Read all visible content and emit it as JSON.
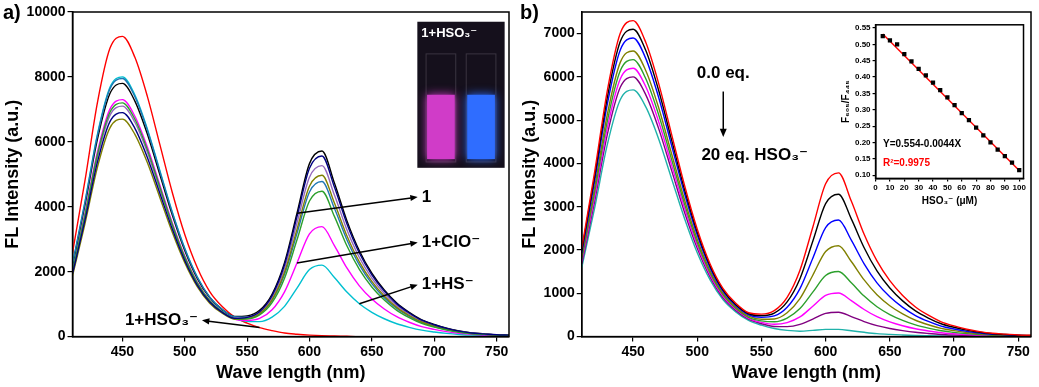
{
  "chart_data": [
    {
      "type": "line",
      "title": "a)",
      "x_label": "Wave length (nm)",
      "y_label": "FL Intensity (a.u.)",
      "xlim": [
        410,
        760
      ],
      "xticks": [
        450,
        500,
        550,
        600,
        650,
        700,
        750
      ],
      "ylim": [
        0,
        10000
      ],
      "yticks": [
        0,
        2000,
        4000,
        6000,
        8000,
        10000
      ],
      "grid": false,
      "annotations": [
        "1+HSO₃⁻"
      ],
      "x": [
        410,
        420,
        430,
        440,
        450,
        460,
        470,
        480,
        490,
        500,
        510,
        520,
        530,
        540,
        550,
        560,
        570,
        580,
        590,
        600,
        610,
        620,
        630,
        640,
        650,
        660,
        670,
        680,
        690,
        700,
        710,
        720,
        730,
        740,
        750,
        760
      ],
      "series": [
        {
          "color": "#000080",
          "values": [
            1932,
            3588,
            5382,
            6624,
            6900,
            6417,
            5520,
            4416,
            3312,
            2346,
            1587,
            1063,
            746,
            561,
            591,
            767,
            1258,
            2211,
            3695,
            5187,
            5565,
            4606,
            3479,
            2576,
            1904,
            1400,
            1008,
            728,
            504,
            364,
            252,
            168,
            112,
            84,
            56,
            45
          ]
        },
        {
          "color": "#2ca02c",
          "values": [
            2016,
            3744,
            5616,
            6912,
            7200,
            6696,
            5760,
            4608,
            3456,
            2448,
            1656,
            1103,
            765,
            558,
            549,
            666,
            1044,
            1796,
            2983,
            4176,
            4477,
            3704,
            2797,
            2070,
            1530,
            1125,
            810,
            585,
            405,
            293,
            203,
            135,
            90,
            68,
            45,
            36
          ]
        },
        {
          "color": "#808000",
          "values": [
            1876,
            3484,
            5226,
            6432,
            6700,
            6231,
            5360,
            4288,
            3216,
            2278,
            1541,
            1030,
            720,
            536,
            552,
            701,
            1134,
            1980,
            3304,
            4634,
            4970,
            4113,
            3107,
            2300,
            1700,
            1250,
            900,
            650,
            450,
            325,
            225,
            150,
            100,
            75,
            50,
            40
          ]
        },
        {
          "color": "#9467bd",
          "values": [
            1988,
            3692,
            5538,
            6816,
            7100,
            6603,
            5680,
            4544,
            3408,
            2414,
            1633,
            1092,
            763,
            568,
            585,
            743,
            1202,
            2099,
            3502,
            4912,
            5268,
            4360,
            3293,
            2438,
            1802,
            1325,
            954,
            689,
            477,
            345,
            239,
            159,
            106,
            80,
            53,
            42
          ]
        },
        {
          "color": "#1f77b4",
          "values": [
            2226,
            4134,
            6201,
            7632,
            7950,
            7394,
            6360,
            5088,
            3816,
            2703,
            1829,
            1217,
            843,
            613,
            598,
            719,
            1119,
            1919,
            3184,
            4456,
            4776,
            3952,
            2984,
            2208,
            1632,
            1200,
            864,
            624,
            432,
            312,
            216,
            144,
            96,
            72,
            48,
            38
          ]
        },
        {
          "name": "1",
          "color": "#000000",
          "values": [
            2184,
            4056,
            6084,
            7488,
            7800,
            7254,
            6240,
            4992,
            3744,
            2652,
            1794,
            1199,
            838,
            622,
            639,
            809,
            1306,
            2279,
            3800,
            5329,
            5716,
            4731,
            3573,
            2645,
            1955,
            1438,
            1035,
            748,
            518,
            374,
            259,
            173,
            115,
            86,
            58,
            46
          ]
        },
        {
          "name": "1+ClO⁻",
          "color": "#ff00ff",
          "values": [
            2044,
            3796,
            5694,
            7008,
            7300,
            6789,
            5840,
            4672,
            3504,
            2482,
            1679,
            1112,
            764,
            543,
            499,
            559,
            826,
            1380,
            2268,
            3165,
            3388,
            2803,
            2115,
            1564,
            1156,
            850,
            612,
            442,
            306,
            221,
            153,
            102,
            68,
            51,
            34,
            27
          ]
        },
        {
          "name": "1+HS⁻",
          "color": "#00c0d0",
          "values": [
            2240,
            4160,
            6240,
            7680,
            8000,
            7440,
            6400,
            5120,
            3840,
            2720,
            1840,
            1211,
            822,
            564,
            470,
            460,
            600,
            932,
            1494,
            2064,
            2202,
            1820,
            1372,
            1012,
            748,
            550,
            396,
            286,
            198,
            143,
            99,
            66,
            44,
            33,
            22,
            18
          ]
        },
        {
          "name": "1+HSO₃⁻",
          "color": "#ff0000",
          "values": [
            2590,
            4810,
            7215,
            8880,
            9250,
            8603,
            7400,
            5920,
            4440,
            3145,
            2128,
            1388,
            925,
            601,
            416,
            278,
            185,
            111,
            74,
            46,
            28,
            19,
            9,
            0,
            0,
            0,
            0,
            0,
            0,
            0,
            0,
            0,
            0,
            0,
            0,
            0
          ]
        }
      ]
    },
    {
      "type": "line",
      "title": "b)",
      "x_label": "Wave length (nm)",
      "y_label": "FL Intensity (a.u.)",
      "xlim": [
        410,
        760
      ],
      "xticks": [
        450,
        500,
        550,
        600,
        650,
        700,
        750
      ],
      "ylim": [
        0,
        7500
      ],
      "yticks": [
        0,
        1000,
        2000,
        3000,
        4000,
        5000,
        6000,
        7000
      ],
      "grid": false,
      "annotations": [
        "0.0 eq.",
        "20 eq. HSO₃⁻"
      ],
      "x": [
        410,
        420,
        430,
        440,
        450,
        460,
        470,
        480,
        490,
        500,
        510,
        520,
        530,
        540,
        550,
        560,
        570,
        580,
        590,
        600,
        610,
        620,
        630,
        640,
        650,
        660,
        670,
        680,
        690,
        700,
        710,
        720,
        730,
        740,
        750,
        760
      ],
      "series": [
        {
          "color": "#ff0000",
          "values": [
            2044,
            3796,
            5694,
            7008,
            7300,
            6789,
            5840,
            4672,
            3504,
            2482,
            1679,
            1114,
            768,
            551,
            519,
            599,
            906,
            1532,
            2528,
            3533,
            3784,
            3131,
            2363,
            1748,
            1292,
            950,
            684,
            494,
            342,
            247,
            171,
            114,
            76,
            57,
            38,
            30
          ]
        },
        {
          "color": "#000000",
          "values": [
            1988,
            3692,
            5538,
            6816,
            7100,
            6603,
            5680,
            4544,
            3408,
            2414,
            1633,
            1082,
            743,
            528,
            485,
            543,
            802,
            1339,
            2202,
            3072,
            3288,
            2720,
            2053,
            1518,
            1122,
            825,
            594,
            429,
            297,
            215,
            149,
            99,
            66,
            50,
            33,
            26
          ]
        },
        {
          "color": "#0000ff",
          "values": [
            1932,
            3588,
            5382,
            6624,
            6900,
            6417,
            5520,
            4416,
            3312,
            2346,
            1587,
            1049,
            717,
            503,
            446,
            477,
            678,
            1109,
            1810,
            2519,
            2694,
            2228,
            1681,
            1242,
            918,
            675,
            486,
            351,
            243,
            176,
            122,
            81,
            54,
            41,
            27,
            22
          ]
        },
        {
          "color": "#808000",
          "values": [
            1848,
            3432,
            5148,
            6336,
            6600,
            6138,
            5280,
            4224,
            3168,
            2244,
            1518,
            1001,
            681,
            471,
            402,
            408,
            552,
            877,
            1418,
            1965,
            2099,
            1735,
            1309,
            966,
            714,
            525,
            378,
            273,
            189,
            137,
            95,
            63,
            42,
            32,
            21,
            17
          ]
        },
        {
          "color": "#2ca02c",
          "values": [
            1792,
            3328,
            4992,
            6144,
            6400,
            5952,
            5120,
            4096,
            3072,
            2176,
            1472,
            968,
            655,
            446,
            363,
            342,
            428,
            647,
            1026,
            1412,
            1504,
            1243,
            936,
            690,
            510,
            375,
            270,
            195,
            135,
            98,
            68,
            45,
            30,
            23,
            15,
            12
          ]
        },
        {
          "color": "#ff00ff",
          "values": [
            1736,
            3224,
            4836,
            5952,
            6200,
            5766,
            4960,
            3968,
            2976,
            2108,
            1426,
            935,
            630,
            423,
            329,
            286,
            324,
            454,
            700,
            951,
            1009,
            832,
            626,
            460,
            340,
            250,
            180,
            130,
            90,
            65,
            45,
            30,
            20,
            15,
            10,
            8
          ]
        },
        {
          "color": "#800080",
          "values": [
            1680,
            3120,
            4680,
            5760,
            6000,
            5580,
            4800,
            3840,
            2880,
            2040,
            1380,
            903,
            606,
            401,
            298,
            235,
            230,
            281,
            406,
            536,
            563,
            463,
            347,
            253,
            187,
            138,
            99,
            72,
            50,
            36,
            25,
            17,
            11,
            8,
            6,
            4
          ]
        },
        {
          "color": "#20b2aa",
          "values": [
            1596,
            2964,
            4446,
            5472,
            5700,
            5301,
            4560,
            3648,
            2736,
            1938,
            1311,
            856,
            572,
            374,
            265,
            186,
            144,
            125,
            144,
            167,
            166,
            134,
            99,
            69,
            51,
            38,
            27,
            20,
            14,
            10,
            7,
            5,
            3,
            2,
            2,
            1
          ]
        }
      ]
    },
    {
      "type": "scatter",
      "x_label": "HSO₃⁻ (μM)",
      "y_label": "F₆₀₅/F₄₄₅",
      "xlim": [
        0,
        103
      ],
      "xticks": [
        0,
        10,
        20,
        30,
        40,
        50,
        60,
        70,
        80,
        90,
        100
      ],
      "ylim": [
        0.09,
        0.56
      ],
      "yticks": [
        {
          "value": 0.1,
          "label": "0.10"
        },
        0.15,
        {
          "value": 0.2,
          "label": "0.20"
        },
        0.25,
        {
          "value": 0.3,
          "label": "0.30"
        },
        0.35,
        {
          "value": 0.4,
          "label": "0.40"
        },
        0.45,
        {
          "value": 0.5,
          "label": "0.50"
        },
        0.55
      ],
      "grid": false,
      "annotations": [
        "Y=0.554-0.0044X",
        "R²=0.9975"
      ],
      "series": [
        {
          "color": "#000000",
          "marker": "square",
          "line_style": "none",
          "x": [
            5,
            10,
            15,
            20,
            25,
            30,
            35,
            40,
            45,
            50,
            55,
            60,
            65,
            70,
            75,
            80,
            85,
            90,
            95,
            100
          ],
          "values": [
            0.525,
            0.512,
            0.5,
            0.47,
            0.448,
            0.425,
            0.405,
            0.383,
            0.36,
            0.338,
            0.314,
            0.29,
            0.268,
            0.245,
            0.222,
            0.2,
            0.178,
            0.158,
            0.138,
            0.115
          ]
        },
        {
          "type": "line",
          "color": "#ff0000",
          "marker": "none",
          "line_style": "solid",
          "x": [
            5,
            100
          ],
          "values": [
            0.532,
            0.114
          ]
        }
      ]
    }
  ]
}
